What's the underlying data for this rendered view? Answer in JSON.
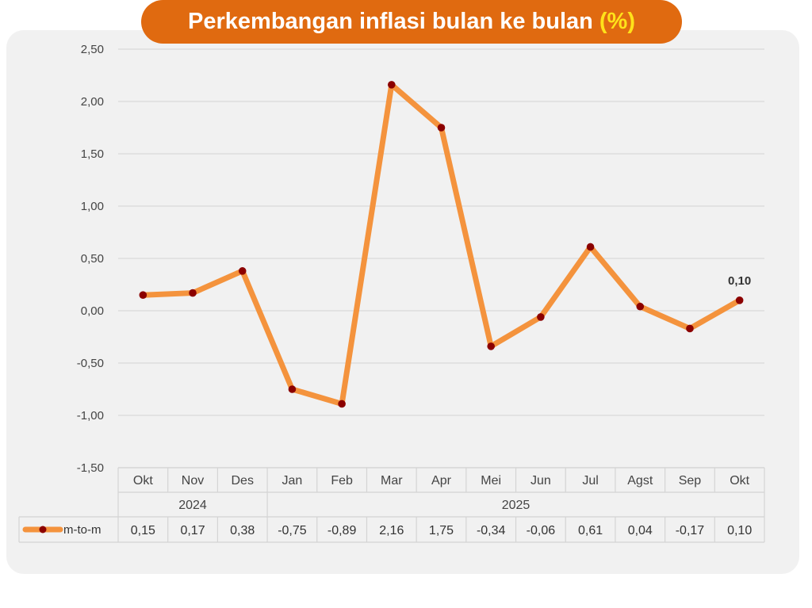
{
  "title": {
    "text": "Perkembangan inflasi bulan ke bulan",
    "unit": "(%)"
  },
  "colors": {
    "title_bg": "#e06a10",
    "title_text": "#ffffff",
    "unit_text": "#ffe21a",
    "line": "#f4933d",
    "marker": "#8b0000",
    "panel_bg": "#f1f1f1"
  },
  "chart_data": {
    "type": "line",
    "title": "Perkembangan inflasi bulan ke bulan (%)",
    "categories": [
      "Okt",
      "Nov",
      "Des",
      "Jan",
      "Feb",
      "Mar",
      "Apr",
      "Mei",
      "Jun",
      "Jul",
      "Agst",
      "Sep",
      "Okt"
    ],
    "year_groups": [
      {
        "label": "2024",
        "count": 3
      },
      {
        "label": "2025",
        "count": 10
      }
    ],
    "series": [
      {
        "name": "m-to-m",
        "values": [
          0.15,
          0.17,
          0.38,
          -0.75,
          -0.89,
          2.16,
          1.75,
          -0.34,
          -0.06,
          0.61,
          0.04,
          -0.17,
          0.1
        ],
        "value_labels": [
          "0,15",
          "0,17",
          "0,38",
          "-0,75",
          "-0,89",
          "2,16",
          "1,75",
          "-0,34",
          "-0,06",
          "0,61",
          "0,04",
          "-0,17",
          "0,10"
        ]
      }
    ],
    "ylim": [
      -1.5,
      2.5
    ],
    "yticks": [
      2.5,
      2.0,
      1.5,
      1.0,
      0.5,
      0.0,
      -0.5,
      -1.0,
      -1.5
    ],
    "ytick_labels": [
      "2,50",
      "2,00",
      "1,50",
      "1,00",
      "0,50",
      "0,00",
      "-0,50",
      "-1,00",
      "-1,50"
    ],
    "annotation": {
      "index": 12,
      "text": "0,10"
    },
    "grid": true,
    "legend": "data-table"
  }
}
